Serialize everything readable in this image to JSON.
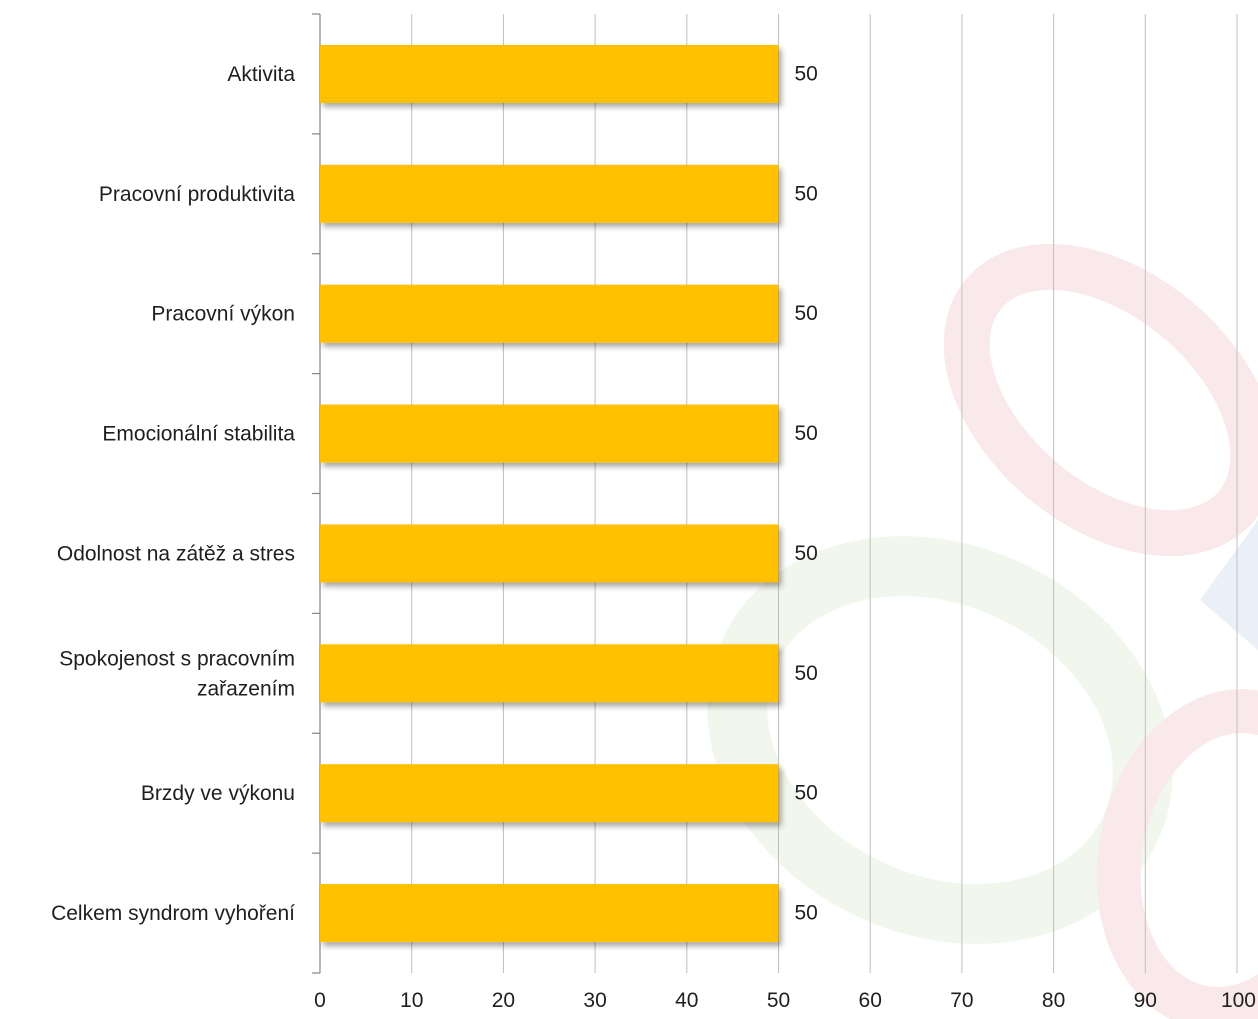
{
  "chart_data": {
    "type": "bar",
    "orientation": "horizontal",
    "categories": [
      "Aktivita",
      "Pracovní produktivita",
      "Pracovní výkon",
      "Emocionální stabilita",
      "Odolnost na zátěž a stres",
      "Spokojenost s pracovním zařazením",
      "Brzdy ve výkonu",
      "Celkem syndrom vyhoření"
    ],
    "category_lines": [
      [
        "Aktivita"
      ],
      [
        "Pracovní produktivita"
      ],
      [
        "Pracovní výkon"
      ],
      [
        "Emocionální stabilita"
      ],
      [
        "Odolnost na zátěž a stres"
      ],
      [
        "Spokojenost s pracovním",
        "zařazením"
      ],
      [
        "Brzdy ve výkonu"
      ],
      [
        "Celkem syndrom vyhoření"
      ]
    ],
    "values": [
      50,
      50,
      50,
      50,
      50,
      50,
      50,
      50
    ],
    "xlim": [
      0,
      100
    ],
    "xticks": [
      0,
      10,
      20,
      30,
      40,
      50,
      60,
      70,
      80,
      90,
      100
    ],
    "grid": true,
    "legend": "none",
    "data_labels": true,
    "bar_color": "#FFC000",
    "title": "",
    "xlabel": "",
    "ylabel": ""
  },
  "colors": {
    "grid": "#BFBFBF",
    "axis": "#868686",
    "watermark_red": "#E8A0A8",
    "watermark_green": "#C8DDB0",
    "watermark_blue": "#A8BCE0"
  }
}
